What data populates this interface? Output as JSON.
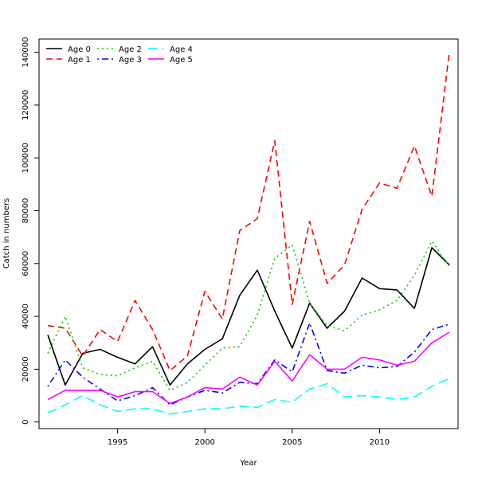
{
  "chart_data": {
    "type": "line",
    "title": "",
    "xlabel": "Year",
    "ylabel": "Catch in numbers",
    "xlim": [
      1990.5,
      2014.5
    ],
    "ylim": [
      -2500,
      145000
    ],
    "x_ticks": [
      1995,
      2000,
      2005,
      2010
    ],
    "x_tick_labels": [
      "1995",
      "2000",
      "2005",
      "2010"
    ],
    "y_ticks": [
      0,
      20000,
      40000,
      60000,
      80000,
      100000,
      120000,
      140000
    ],
    "y_tick_labels": [
      "0",
      "20000",
      "40000",
      "60000",
      "80000",
      "100000",
      "120000",
      "140000"
    ],
    "grid": false,
    "legend_position": "top-left",
    "x": [
      1991,
      1992,
      1993,
      1994,
      1995,
      1996,
      1997,
      1998,
      1999,
      2000,
      2001,
      2002,
      2003,
      2004,
      2005,
      2006,
      2007,
      2008,
      2009,
      2010,
      2011,
      2012,
      2013,
      2014
    ],
    "series": [
      {
        "name": "Age 0",
        "color": "#000000",
        "dash": "solid",
        "values": [
          33000,
          14000,
          26000,
          27500,
          24500,
          22000,
          28500,
          14000,
          22000,
          27500,
          31500,
          48000,
          57500,
          42000,
          28000,
          45000,
          35500,
          42000,
          54500,
          50500,
          50000,
          43000,
          66000,
          59500
        ]
      },
      {
        "name": "Age 1",
        "color": "#ff0000",
        "dash": "dashed",
        "values": [
          36500,
          35500,
          25000,
          35000,
          30500,
          46000,
          35000,
          19500,
          25000,
          49500,
          39000,
          72500,
          77000,
          106500,
          44500,
          76000,
          52500,
          59500,
          80500,
          90500,
          88500,
          104500,
          85500,
          140000
        ]
      },
      {
        "name": "Age 2",
        "color": "#00cd00",
        "dash": "dotted",
        "values": [
          26000,
          40000,
          20500,
          18000,
          17500,
          20500,
          23000,
          12000,
          15000,
          21500,
          28000,
          28500,
          40500,
          62000,
          67000,
          45000,
          36500,
          34500,
          40500,
          42500,
          46000,
          55500,
          68500,
          59000
        ]
      },
      {
        "name": "Age 3",
        "color": "#0000ff",
        "dash": "dotdash",
        "values": [
          13500,
          23500,
          17000,
          12500,
          8000,
          10000,
          13000,
          6500,
          9500,
          12000,
          11000,
          15000,
          14500,
          23500,
          19000,
          37500,
          19500,
          18500,
          21500,
          20500,
          21000,
          26500,
          35000,
          37000
        ]
      },
      {
        "name": "Age 4",
        "color": "#00ffff",
        "dash": "longdash",
        "values": [
          3500,
          6500,
          10000,
          6500,
          4000,
          5000,
          5000,
          3000,
          4000,
          5000,
          5000,
          6000,
          5500,
          8500,
          7500,
          12500,
          14500,
          9500,
          10000,
          9500,
          8500,
          9500,
          13500,
          16500
        ]
      },
      {
        "name": "Age 5",
        "color": "#ff00ff",
        "dash": "solid",
        "values": [
          8500,
          12000,
          12000,
          12000,
          9500,
          11500,
          11500,
          7000,
          9500,
          13000,
          12500,
          17000,
          14000,
          23000,
          15500,
          25500,
          20000,
          20000,
          24500,
          23500,
          21500,
          23000,
          30000,
          34000
        ]
      }
    ]
  }
}
